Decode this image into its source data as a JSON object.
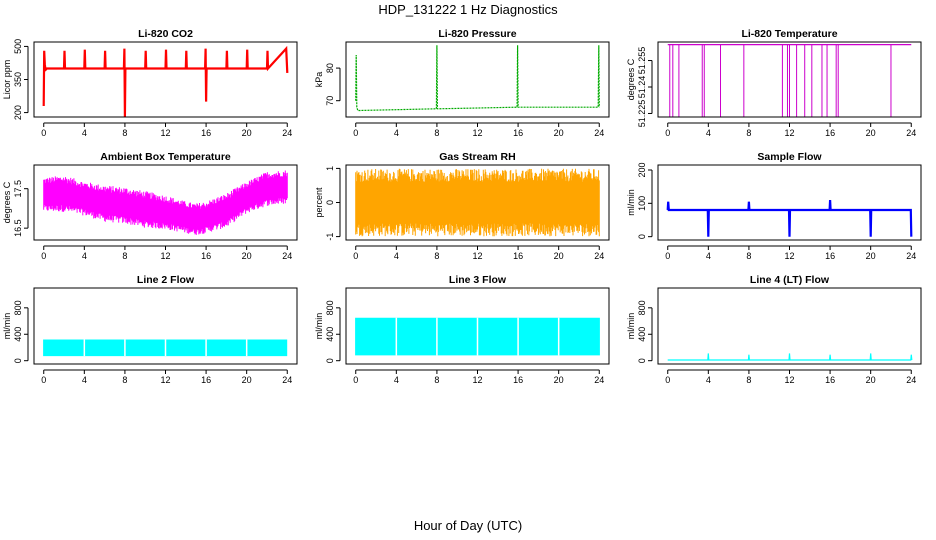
{
  "figure": {
    "title": "HDP_131222  1 Hz Diagnostics",
    "xlabel": "Hour of Day (UTC)"
  },
  "chart_data": [
    {
      "type": "line",
      "title": "Li-820 CO2",
      "ylabel": "Licor ppm",
      "color": "#ff0000",
      "xlim": [
        0,
        24
      ],
      "ylim": [
        180,
        520
      ],
      "xticks": [
        0,
        4,
        8,
        12,
        16,
        20,
        24
      ],
      "yticks": [
        200,
        350,
        500
      ],
      "series": [
        {
          "x": [
            0,
            0.05,
            0.1,
            0.15,
            0.2,
            0.3,
            2.0,
            2.05,
            2.1,
            4.0,
            4.05,
            4.1,
            6.0,
            6.05,
            6.1,
            7.9,
            7.95,
            8.0,
            8.05,
            8.1,
            10.0,
            10.05,
            10.1,
            12.0,
            12.05,
            12.1,
            14.0,
            14.05,
            14.1,
            15.9,
            15.95,
            16.0,
            16.05,
            16.1,
            18.0,
            18.05,
            18.1,
            20.0,
            20.05,
            20.1,
            22.0,
            22.05,
            22.1,
            23.9,
            24.0
          ],
          "y": [
            230,
            480,
            420,
            400,
            395,
            400,
            400,
            480,
            400,
            400,
            485,
            400,
            400,
            480,
            400,
            400,
            490,
            180,
            400,
            400,
            400,
            480,
            400,
            400,
            485,
            400,
            400,
            480,
            400,
            400,
            490,
            250,
            400,
            400,
            400,
            480,
            400,
            400,
            485,
            400,
            400,
            480,
            400,
            490,
            380
          ]
        }
      ]
    },
    {
      "type": "line",
      "title": "Li-820 Pressure",
      "ylabel": "kPa",
      "color": "#00aa00",
      "xlim": [
        0,
        24
      ],
      "ylim": [
        65,
        88
      ],
      "xticks": [
        0,
        4,
        8,
        12,
        16,
        20,
        24
      ],
      "yticks": [
        70,
        80
      ],
      "series": [
        {
          "x": [
            0,
            0.05,
            0.1,
            0.2,
            0.3,
            7.95,
            8.0,
            8.05,
            8.1,
            15.9,
            15.95,
            16.0,
            16.05,
            16.1,
            23.9,
            23.95,
            24.0
          ],
          "y": [
            70,
            84,
            68,
            67,
            67,
            67.5,
            87,
            67.5,
            67.5,
            68,
            87,
            68,
            68,
            68,
            68,
            87,
            68
          ]
        }
      ]
    },
    {
      "type": "line",
      "title": "Li-820 Temperature",
      "ylabel": "degrees C",
      "color": "#cc00cc",
      "xlim": [
        0,
        24
      ],
      "ylim": [
        51.223,
        51.2655
      ],
      "xticks": [
        0,
        4,
        8,
        12,
        16,
        20,
        24
      ],
      "yticks": [
        51.225,
        51.24,
        51.255
      ],
      "baseline": 51.264,
      "dips": [
        0.2,
        0.5,
        1.1,
        3.4,
        3.6,
        5.2,
        7.5,
        11.3,
        11.8,
        12.0,
        12.7,
        13.5,
        14.2,
        15.2,
        15.7,
        16.6,
        16.8,
        22.0
      ]
    },
    {
      "type": "line",
      "title": "Ambient Box Temperature",
      "ylabel": "degrees C",
      "color": "#ff00ff",
      "xlim": [
        0,
        24
      ],
      "ylim": [
        16.2,
        18.1
      ],
      "xticks": [
        0,
        4,
        8,
        12,
        16,
        20,
        24
      ],
      "yticks": [
        16.5,
        17.5
      ],
      "band": {
        "x": [
          0,
          2,
          4,
          6,
          8,
          10,
          12,
          14,
          15,
          16,
          18,
          20,
          22,
          24
        ],
        "upper": [
          17.7,
          17.75,
          17.6,
          17.5,
          17.45,
          17.35,
          17.25,
          17.1,
          17.05,
          17.1,
          17.3,
          17.6,
          17.85,
          17.9
        ],
        "lower": [
          17.0,
          17.0,
          16.9,
          16.75,
          16.7,
          16.6,
          16.55,
          16.45,
          16.4,
          16.45,
          16.6,
          16.95,
          17.15,
          17.2
        ]
      }
    },
    {
      "type": "scatter",
      "title": "Gas Stream RH",
      "ylabel": "percent",
      "color": "#ffa500",
      "xlim": [
        0,
        24
      ],
      "ylim": [
        -1.1,
        1.1
      ],
      "xticks": [
        0,
        4,
        8,
        12,
        16,
        20,
        24
      ],
      "yticks": [
        -1.0,
        0.0,
        1.0
      ],
      "band": {
        "x": [
          0,
          24
        ],
        "upper": [
          0.8,
          0.8
        ],
        "lower": [
          -0.8,
          -0.8
        ]
      }
    },
    {
      "type": "line",
      "title": "Sample Flow",
      "ylabel": "ml/min",
      "color": "#0000ff",
      "xlim": [
        0,
        24
      ],
      "ylim": [
        -10,
        215
      ],
      "xticks": [
        0,
        4,
        8,
        12,
        16,
        20,
        24
      ],
      "yticks": [
        0,
        100,
        200
      ],
      "series": [
        {
          "x": [
            0,
            0.05,
            0.1,
            3.95,
            4.0,
            4.05,
            7.95,
            8.0,
            8.05,
            11.95,
            12.0,
            12.05,
            15.95,
            16.0,
            16.05,
            19.95,
            20.0,
            20.05,
            23.95,
            24.0
          ],
          "y": [
            80,
            105,
            80,
            80,
            0,
            80,
            80,
            105,
            80,
            80,
            0,
            80,
            80,
            110,
            80,
            80,
            0,
            80,
            80,
            0
          ]
        }
      ]
    },
    {
      "type": "area",
      "title": "Line 2 Flow",
      "ylabel": "ml/min",
      "color": "#00ffff",
      "xlim": [
        0,
        24
      ],
      "ylim": [
        -50,
        1100
      ],
      "xticks": [
        0,
        4,
        8,
        12,
        16,
        20,
        24
      ],
      "yticks": [
        0,
        400,
        800
      ],
      "band": {
        "x": [
          0,
          24
        ],
        "upper": [
          320,
          320
        ],
        "lower": [
          70,
          70
        ]
      },
      "gaps": [
        4,
        8,
        12,
        16,
        20,
        24
      ]
    },
    {
      "type": "area",
      "title": "Line 3 Flow",
      "ylabel": "ml/min",
      "color": "#00ffff",
      "xlim": [
        0,
        24
      ],
      "ylim": [
        -50,
        1100
      ],
      "xticks": [
        0,
        4,
        8,
        12,
        16,
        20,
        24
      ],
      "yticks": [
        0,
        400,
        800
      ],
      "band": {
        "x": [
          0,
          24
        ],
        "upper": [
          650,
          650
        ],
        "lower": [
          80,
          80
        ]
      },
      "gaps": [
        4,
        8,
        12,
        16,
        20
      ]
    },
    {
      "type": "line",
      "title": "Line 4 (LT) Flow",
      "ylabel": "ml/min",
      "color": "#00ffff",
      "xlim": [
        0,
        24
      ],
      "ylim": [
        -50,
        1100
      ],
      "xticks": [
        0,
        4,
        8,
        12,
        16,
        20,
        24
      ],
      "yticks": [
        0,
        400,
        800
      ],
      "series": [
        {
          "x": [
            0,
            3.95,
            4.0,
            4.05,
            7.95,
            8.0,
            8.05,
            11.95,
            12.0,
            12.05,
            15.95,
            16.0,
            16.05,
            19.95,
            20.0,
            20.05,
            23.95,
            24.0,
            24.05
          ],
          "y": [
            10,
            10,
            110,
            10,
            10,
            90,
            10,
            10,
            110,
            10,
            10,
            90,
            10,
            10,
            110,
            10,
            10,
            90,
            10
          ]
        }
      ]
    }
  ]
}
